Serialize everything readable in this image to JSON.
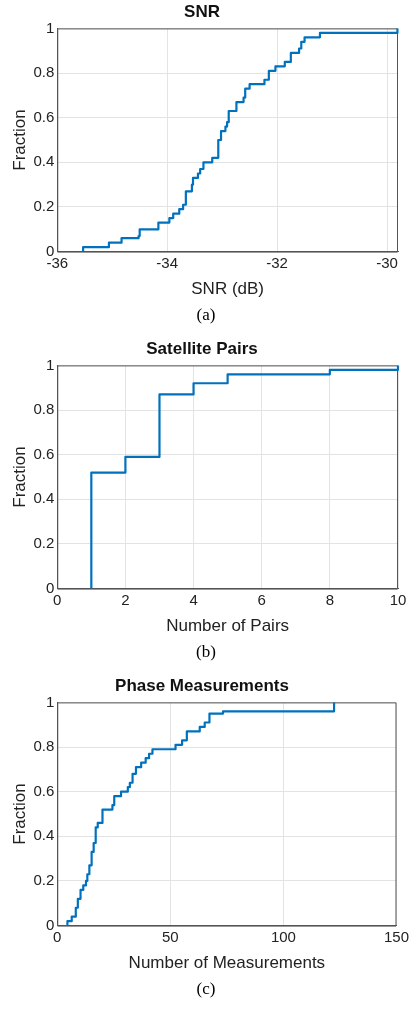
{
  "chart_data": [
    {
      "type": "step",
      "title": "SNR",
      "xlabel": "SNR (dB)",
      "ylabel": "Fraction",
      "xlim": [
        -36,
        -29.8
      ],
      "xticks": [
        -36,
        -34,
        -32,
        -30
      ],
      "ylim": [
        0,
        1
      ],
      "yticks": [
        0,
        0.2,
        0.4,
        0.6,
        0.8,
        1
      ],
      "grid": true,
      "annotations": [
        "(a)"
      ],
      "series": [
        {
          "color": "#0072bd",
          "x": [
            -35.53,
            -35.53,
            -35.06,
            -34.83,
            -34.52,
            -34.5,
            -34.16,
            -33.96,
            -33.89,
            -33.78,
            -33.71,
            -33.66,
            -33.55,
            -33.53,
            -33.44,
            -33.4,
            -33.34,
            -33.18,
            -33.07,
            -33.02,
            -32.94,
            -32.91,
            -32.88,
            -32.74,
            -32.61,
            -32.58,
            -32.5,
            -32.23,
            -32.15,
            -32.03,
            -31.86,
            -31.75,
            -31.6,
            -31.56,
            -31.5,
            -31.22,
            -29.81
          ],
          "values": [
            0,
            0.02,
            0.04,
            0.06,
            0.07,
            0.1,
            0.13,
            0.15,
            0.17,
            0.19,
            0.21,
            0.27,
            0.3,
            0.33,
            0.35,
            0.37,
            0.4,
            0.42,
            0.5,
            0.54,
            0.56,
            0.58,
            0.63,
            0.67,
            0.69,
            0.73,
            0.75,
            0.77,
            0.81,
            0.83,
            0.85,
            0.89,
            0.91,
            0.94,
            0.96,
            0.98,
            1
          ]
        }
      ]
    },
    {
      "type": "step",
      "title": "Satellite Pairs",
      "xlabel": "Number of Pairs",
      "ylabel": "Fraction",
      "xlim": [
        0,
        10
      ],
      "xticks": [
        0,
        2,
        4,
        6,
        8,
        10
      ],
      "ylim": [
        0,
        1
      ],
      "yticks": [
        0,
        0.2,
        0.4,
        0.6,
        0.8,
        1
      ],
      "grid": true,
      "annotations": [
        "(b)"
      ],
      "series": [
        {
          "color": "#0072bd",
          "x": [
            1,
            1,
            2,
            3,
            4,
            5,
            8,
            10
          ],
          "values": [
            0,
            0.52,
            0.59,
            0.87,
            0.92,
            0.96,
            0.98,
            1
          ]
        }
      ]
    },
    {
      "type": "step",
      "title": "Phase Measurements",
      "xlabel": "Number of Measurements",
      "ylabel": "Fraction",
      "xlim": [
        0,
        150
      ],
      "xticks": [
        0,
        50,
        100,
        150
      ],
      "ylim": [
        0,
        1
      ],
      "yticks": [
        0,
        0.2,
        0.4,
        0.6,
        0.8,
        1
      ],
      "grid": true,
      "annotations": [
        "(c)"
      ],
      "series": [
        {
          "color": "#0072bd",
          "x": [
            4.5,
            4.5,
            6.4,
            8.2,
            9.1,
            10.3,
            11.5,
            12.7,
            13.3,
            14.2,
            15.2,
            16.1,
            17,
            17.9,
            20,
            24.4,
            25.2,
            28.2,
            31.2,
            32.1,
            33.3,
            34.8,
            37.1,
            39.1,
            40.6,
            42.1,
            52.3,
            55.2,
            57.3,
            63,
            65.2,
            67.3,
            73.3,
            122.4
          ],
          "values": [
            0,
            0.02,
            0.04,
            0.08,
            0.12,
            0.16,
            0.18,
            0.2,
            0.23,
            0.27,
            0.33,
            0.37,
            0.44,
            0.46,
            0.52,
            0.54,
            0.58,
            0.6,
            0.62,
            0.64,
            0.68,
            0.71,
            0.73,
            0.75,
            0.77,
            0.79,
            0.81,
            0.83,
            0.87,
            0.89,
            0.91,
            0.95,
            0.96,
            1
          ]
        }
      ]
    }
  ]
}
